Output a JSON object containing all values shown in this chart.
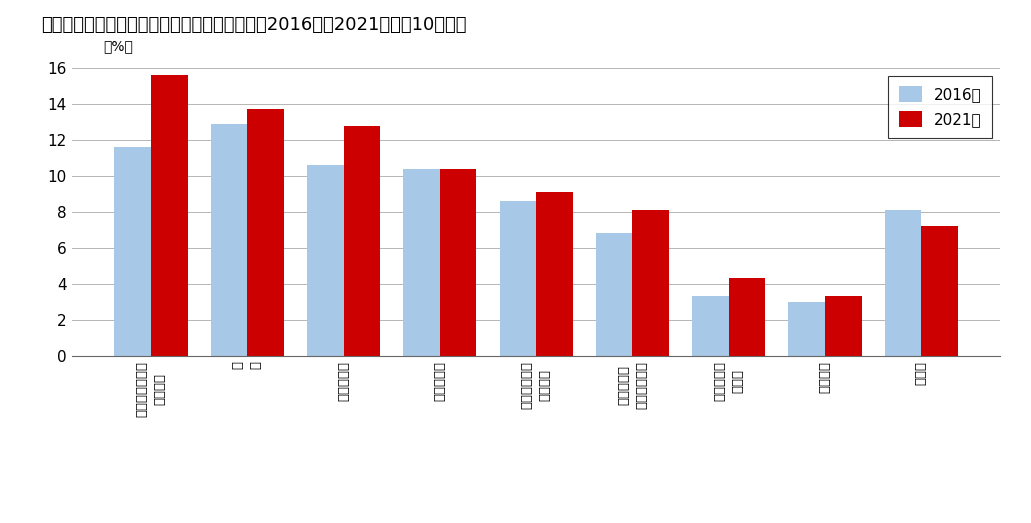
{
  "title": "「学習・自己問発・訓練」の種類別行動者率（2016年～2021年）－10歳以上",
  "categories": [
    "パソコンなどの\n情報処理",
    "英\n語",
    "家政・家事",
    "芸術・文化",
    "人文・社会・\n自然科学",
    "商業実務・\nビジネス関係",
    "英語以外の\n外国語",
    "介護関係",
    "その他"
  ],
  "values_2016": [
    11.6,
    12.9,
    10.6,
    10.4,
    8.6,
    6.8,
    3.3,
    3.0,
    8.1
  ],
  "values_2021": [
    15.6,
    13.7,
    12.8,
    10.4,
    9.1,
    8.1,
    4.3,
    3.3,
    7.2
  ],
  "color_2016": "#a8c8e8",
  "color_2021": "#cc0000",
  "legend_2016": "2016年",
  "legend_2021": "2021年",
  "ylabel": "（%）",
  "ylim": [
    0,
    16
  ],
  "yticks": [
    0,
    2,
    4,
    6,
    8,
    10,
    12,
    14,
    16
  ],
  "background_color": "#ffffff",
  "grid_color": "#aaaaaa"
}
